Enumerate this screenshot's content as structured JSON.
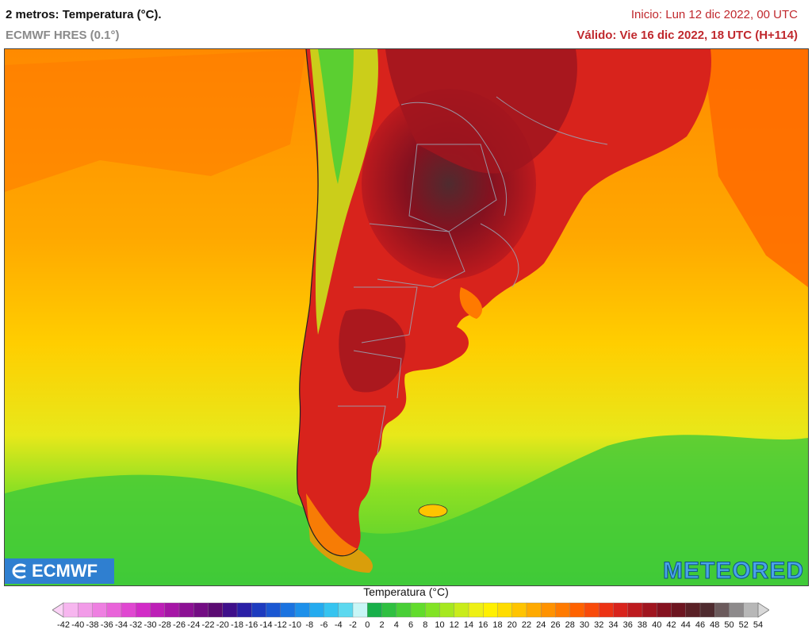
{
  "header": {
    "title": "2 metros: Temperatura (°C).",
    "model": "ECMWF HRES (0.1°)",
    "init": "Inicio: Lun 12 dic 2022, 00 UTC",
    "valid": "Válido: Vie 16 dic 2022, 18 UTC (H+114)"
  },
  "logos": {
    "left": "ECMWF",
    "right": "METEORED"
  },
  "legend": {
    "title": "Temperatura (°C)",
    "ticks": [
      "-42",
      "-40",
      "-38",
      "-36",
      "-34",
      "-32",
      "-30",
      "-28",
      "-26",
      "-24",
      "-22",
      "-20",
      "-18",
      "-16",
      "-14",
      "-12",
      "-10",
      "-8",
      "-6",
      "-4",
      "-2",
      "0",
      "2",
      "4",
      "6",
      "8",
      "10",
      "12",
      "14",
      "16",
      "18",
      "20",
      "22",
      "24",
      "26",
      "28",
      "30",
      "32",
      "34",
      "36",
      "38",
      "40",
      "42",
      "44",
      "46",
      "48",
      "50",
      "52",
      "54"
    ],
    "colors": [
      "#fbd2f6",
      "#f7b6ef",
      "#f29be8",
      "#ee7fe1",
      "#e963d9",
      "#e047d1",
      "#d22bc7",
      "#bd1fb7",
      "#a616a6",
      "#8c1094",
      "#730c83",
      "#5b0a72",
      "#3f0f8a",
      "#2a1fa6",
      "#1d3bbf",
      "#1a57d2",
      "#1b73e0",
      "#1d90ea",
      "#24abef",
      "#35c4f0",
      "#5cd8ef",
      "#c8f6f6",
      "#18b04a",
      "#2fc040",
      "#48cf36",
      "#62dc2c",
      "#82e325",
      "#a6e81f",
      "#c9ec1a",
      "#eef015",
      "#fff000",
      "#ffdc00",
      "#ffc400",
      "#ffaa00",
      "#ff9200",
      "#ff7a00",
      "#ff6200",
      "#f84a0a",
      "#ec3214",
      "#d8231c",
      "#bd1a1e",
      "#a0151f",
      "#85111f",
      "#6d1520",
      "#5a2026",
      "#4f2b2f",
      "#6b5a5c",
      "#8d8a8b",
      "#b7b7b7",
      "#d8d8d8"
    ]
  }
}
